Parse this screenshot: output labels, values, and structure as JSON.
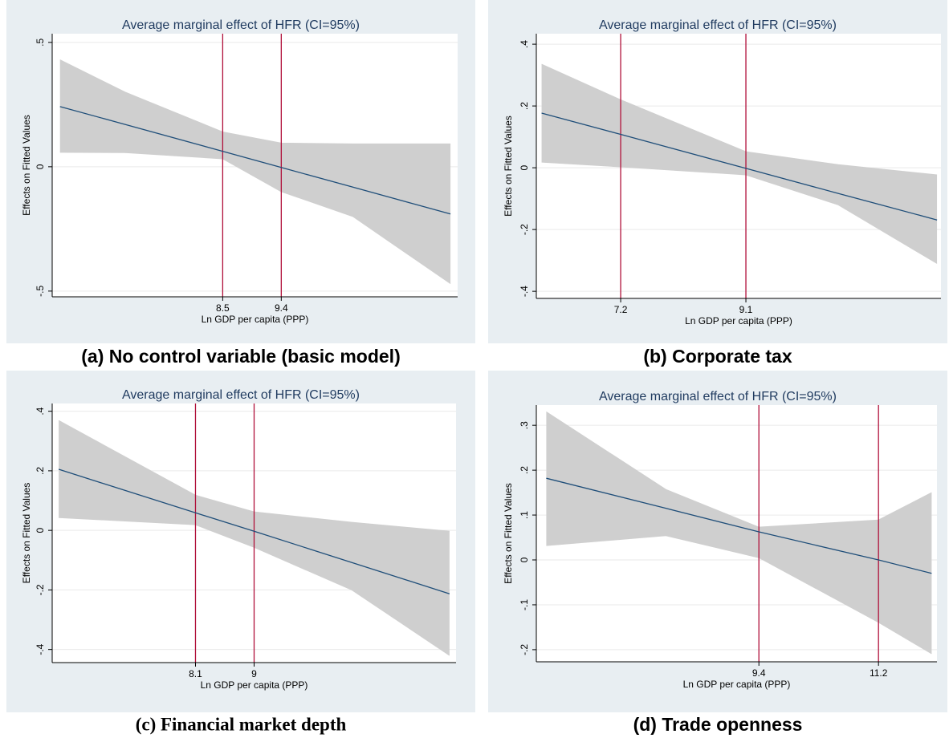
{
  "chart_data": [
    {
      "type": "line",
      "title": "Average marginal effect of HFR (CI=95%)",
      "caption": "(a)  No control variable (basic model)",
      "x_label": "Ln GDP per capita (PPP)",
      "y_label": "Effects on Fitted Values",
      "x": [
        6,
        7,
        8.5,
        9.4,
        10.5,
        12
      ],
      "line": {
        "color": "#1f4e79",
        "values": [
          0.242,
          0.17,
          0.062,
          -0.003,
          -0.082,
          -0.19
        ]
      },
      "band": {
        "color": "#cfcfcf",
        "upper": [
          0.43,
          0.3,
          0.14,
          0.095,
          0.092,
          0.092
        ],
        "lower": [
          0.058,
          0.057,
          0.032,
          -0.1,
          -0.2,
          -0.47
        ]
      },
      "xlim": [
        5.88,
        12.11
      ],
      "xticks": [
        8.5,
        9.4
      ],
      "vline_color": "#b0103a",
      "ylim": [
        -0.523,
        0.535
      ],
      "yticks": [
        {
          "value": -0.5,
          "label": "-.5"
        },
        0,
        {
          "value": 0.5,
          "label": ".5"
        }
      ],
      "grid": true
    },
    {
      "type": "line",
      "title": "Average marginal effect of HFR (CI=95%)",
      "caption": "(b)  Corporate tax",
      "x_label": "Ln GDP per capita (PPP)",
      "y_label": "Effects on Fitted Values",
      "x": [
        6,
        7.2,
        9.1,
        10.5,
        12
      ],
      "line": {
        "color": "#1f4e79",
        "values": [
          0.177,
          0.108,
          -0.002,
          -0.083,
          -0.169
        ]
      },
      "band": {
        "color": "#cfcfcf",
        "upper": [
          0.335,
          0.22,
          0.052,
          0.01,
          -0.023
        ],
        "lower": [
          0.018,
          0.003,
          -0.023,
          -0.12,
          -0.31
        ]
      },
      "xlim": [
        5.92,
        12.06
      ],
      "xticks": [
        7.2,
        9.1
      ],
      "vline_color": "#b0103a",
      "ylim": [
        -0.423,
        0.434
      ],
      "yticks": [
        {
          "value": -0.4,
          "label": "-.4"
        },
        {
          "value": -0.2,
          "label": "-.2"
        },
        0,
        {
          "value": 0.2,
          "label": ".2"
        },
        {
          "value": 0.4,
          "label": ".4"
        }
      ],
      "grid": true
    },
    {
      "type": "line",
      "title": "Average marginal effect of HFR (CI=95%)",
      "caption": "(c) Financial market depth",
      "x_label": "Ln GDP per capita (PPP)",
      "y_label": "Effects on Fitted Values",
      "x": [
        6,
        8.1,
        9,
        10.5,
        12
      ],
      "line": {
        "color": "#1f4e79",
        "values": [
          0.205,
          0.059,
          -0.003,
          -0.108,
          -0.213
        ]
      },
      "band": {
        "color": "#cfcfcf",
        "upper": [
          0.369,
          0.118,
          0.062,
          0.027,
          -0.003
        ],
        "lower": [
          0.043,
          0.019,
          -0.057,
          -0.2,
          -0.42
        ]
      },
      "xlim": [
        5.9,
        12.1
      ],
      "xticks": [
        8.1,
        9
      ],
      "vline_color": "#b0103a",
      "ylim": [
        -0.444,
        0.426
      ],
      "yticks": [
        {
          "value": -0.4,
          "label": "-.4"
        },
        {
          "value": -0.2,
          "label": "-.2"
        },
        0,
        {
          "value": 0.2,
          "label": ".2"
        },
        {
          "value": 0.4,
          "label": ".4"
        }
      ],
      "grid": true
    },
    {
      "type": "line",
      "title": "Average marginal effect of HFR (CI=95%)",
      "caption": "(d)  Trade openness",
      "x_label": "Ln GDP per capita (PPP)",
      "y_label": "Effects on Fitted Values",
      "x": [
        6.2,
        8,
        9.4,
        11.2,
        12
      ],
      "line": {
        "color": "#1f4e79",
        "values": [
          0.182,
          0.115,
          0.0625,
          0,
          -0.03
        ]
      },
      "band": {
        "color": "#cfcfcf",
        "upper": [
          0.33,
          0.157,
          0.073,
          0.089,
          0.15
        ],
        "lower": [
          0.032,
          0.054,
          0.005,
          -0.139,
          -0.209
        ]
      },
      "xlim": [
        6.05,
        12.08
      ],
      "xticks": [
        9.4,
        11.2
      ],
      "vline_color": "#b0103a",
      "ylim": [
        -0.227,
        0.345
      ],
      "yticks": [
        {
          "value": -0.2,
          "label": "-.2"
        },
        {
          "value": -0.1,
          "label": "-.1"
        },
        0,
        {
          "value": 0.1,
          "label": ".1"
        },
        {
          "value": 0.2,
          "label": ".2"
        },
        {
          "value": 0.3,
          "label": ".3"
        }
      ],
      "grid": true
    }
  ]
}
